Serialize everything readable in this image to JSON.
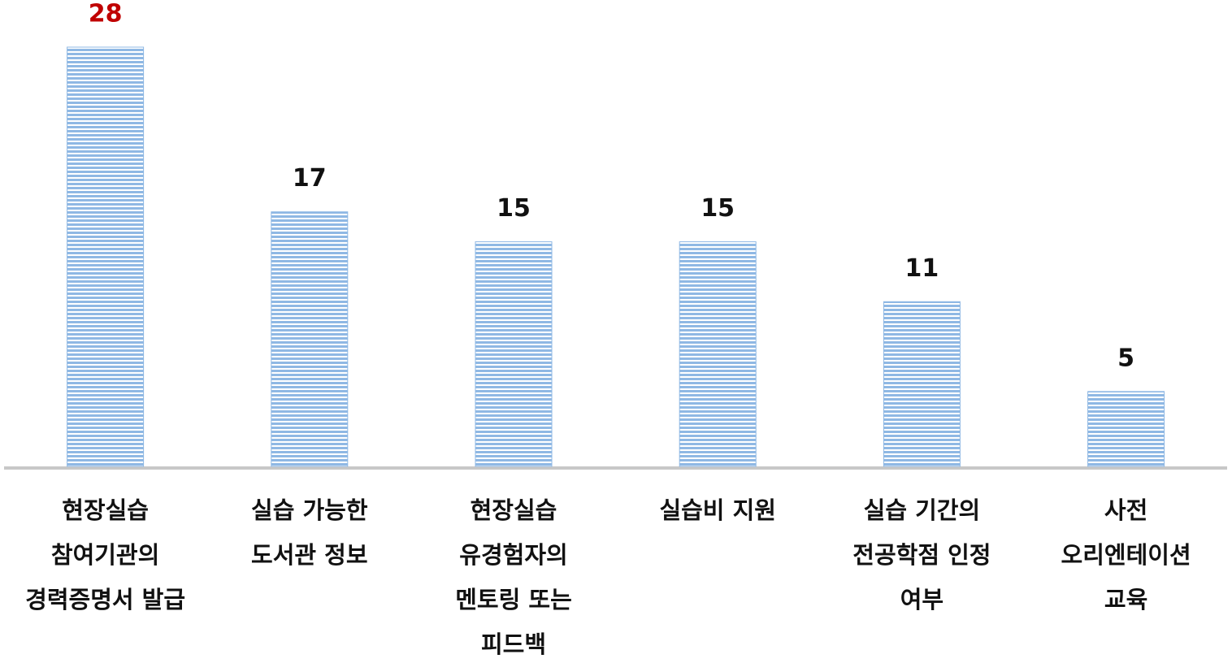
{
  "chart_data": {
    "type": "bar",
    "categories": [
      [
        "현장실습",
        "참여기관의",
        "경력증명서 발급"
      ],
      [
        "실습 가능한",
        "도서관 정보"
      ],
      [
        "현장실습",
        "유경험자의",
        "멘토링 또는",
        "피드백"
      ],
      [
        "실습비 지원"
      ],
      [
        "실습 기간의",
        "전공학점 인정",
        "여부"
      ],
      [
        "사전",
        "오리엔테이션",
        "교육"
      ]
    ],
    "values": [
      28,
      17,
      15,
      15,
      11,
      5
    ],
    "color": "#8fb8e4",
    "value_label_colors": [
      "#c00000",
      "#111111",
      "#111111",
      "#111111",
      "#111111",
      "#111111"
    ]
  }
}
